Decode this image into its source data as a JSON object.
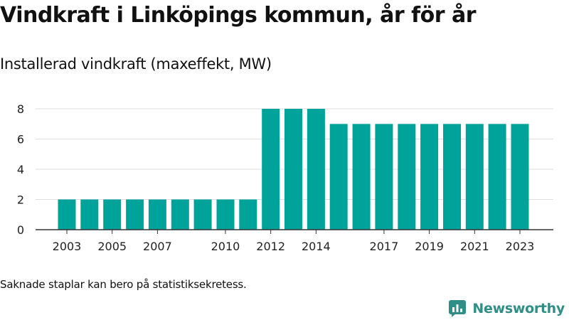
{
  "header": {
    "title": "Vindkraft i Linköpings kommun, år för år",
    "subtitle": "Installerad vindkraft (maxeffekt, MW)"
  },
  "footer": {
    "note": "Saknade staplar kan bero på statistiksekretess.",
    "brand": "Newsworthy"
  },
  "colors": {
    "bar": "#00a39a",
    "brand": "#2f8f86",
    "grid": "#dddddd",
    "axis": "#333333"
  },
  "chart_data": {
    "type": "bar",
    "title": "Vindkraft i Linköpings kommun, år för år",
    "subtitle": "Installerad vindkraft (maxeffekt, MW)",
    "xlabel": "",
    "ylabel": "",
    "categories": [
      "2003",
      "2004",
      "2005",
      "2006",
      "2007",
      "2008",
      "2009",
      "2010",
      "2011",
      "2012",
      "2013",
      "2014",
      "2015",
      "2016",
      "2017",
      "2018",
      "2019",
      "2020",
      "2021",
      "2022",
      "2023"
    ],
    "values": [
      2,
      2,
      2,
      2,
      2,
      2,
      2,
      2,
      2,
      8,
      8,
      8,
      7,
      7,
      7,
      7,
      7,
      7,
      7,
      7,
      7
    ],
    "x_tick_labels": [
      "2003",
      "2005",
      "2007",
      "2010",
      "2012",
      "2014",
      "2017",
      "2019",
      "2021",
      "2023"
    ],
    "y_ticks": [
      0,
      2,
      4,
      6,
      8
    ],
    "ylim": [
      0,
      8.2
    ],
    "grid": true,
    "legend": "none"
  }
}
